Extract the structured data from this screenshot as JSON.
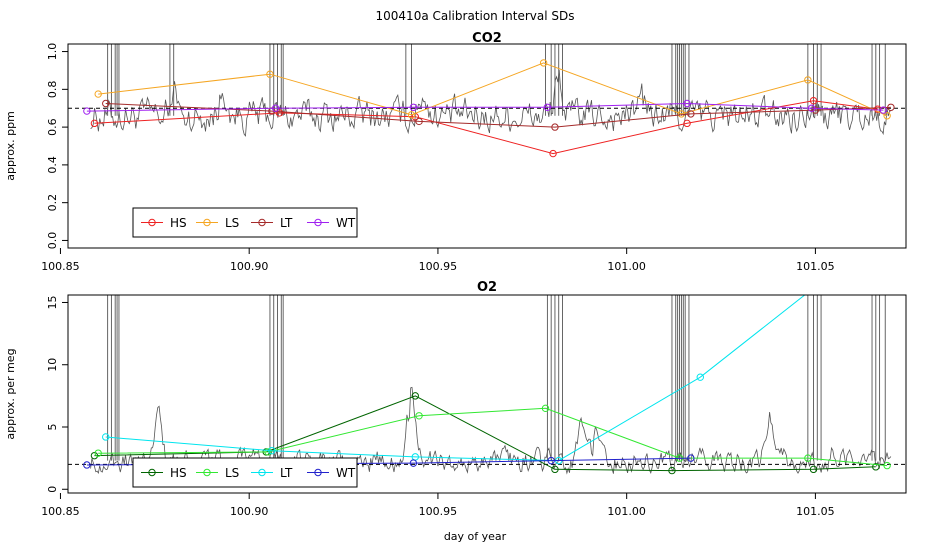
{
  "title": "100410a   Calibration Interval SDs",
  "xlabel": "day of year",
  "chart_data": [
    {
      "type": "line",
      "title": "CO2",
      "ylabel": "approx. ppm",
      "xlim": [
        100.852,
        101.074
      ],
      "ylim": [
        -0.04,
        1.04
      ],
      "xticks": [
        100.85,
        100.9,
        100.95,
        101.0,
        101.05
      ],
      "xtick_labels": [
        "100.85",
        "100.90",
        "100.95",
        "101.00",
        "101.05"
      ],
      "yticks": [
        0.0,
        0.2,
        0.4,
        0.6,
        0.8,
        1.0
      ],
      "ytick_labels": [
        "0.0",
        "0.2",
        "0.4",
        "0.6",
        "0.8",
        "1.0"
      ],
      "reference_line": 0.7,
      "spikes": [
        100.8625,
        100.8635,
        100.8645,
        100.865,
        100.8655,
        100.879,
        100.88,
        100.9055,
        100.9065,
        100.9075,
        100.9085,
        100.909,
        100.9415,
        100.943,
        100.9785,
        100.98,
        100.981,
        100.982,
        100.983,
        101.012,
        101.013,
        101.0135,
        101.014,
        101.0145,
        101.015,
        101.0155,
        101.0165,
        101.048,
        101.0495,
        101.0505,
        101.0515,
        101.065,
        101.066,
        101.067,
        101.0685
      ],
      "background_trace": {
        "baseline": 0.66,
        "amplitude": 0.07,
        "start": 100.858,
        "end": 101.07,
        "peaks": [
          {
            "x": 100.88,
            "y": 0.78
          },
          {
            "x": 100.893,
            "y": 0.8
          },
          {
            "x": 100.946,
            "y": 0.8
          },
          {
            "x": 100.982,
            "y": 0.88
          },
          {
            "x": 101.004,
            "y": 0.74
          },
          {
            "x": 101.049,
            "y": 0.8
          }
        ]
      },
      "legend": [
        "HS",
        "LS",
        "LT",
        "WT"
      ],
      "series": [
        {
          "name": "HS",
          "color": "#ee2222",
          "x": [
            100.859,
            100.908,
            100.944,
            100.9805,
            101.016,
            101.0495,
            101.0665
          ],
          "y": [
            0.62,
            0.675,
            0.655,
            0.46,
            0.62,
            0.74,
            0.695
          ]
        },
        {
          "name": "LS",
          "color": "#f5a623",
          "x": [
            100.86,
            100.9055,
            100.943,
            100.978,
            101.0145,
            101.048,
            101.069
          ],
          "y": [
            0.775,
            0.88,
            0.665,
            0.94,
            0.67,
            0.85,
            0.66
          ]
        },
        {
          "name": "LT",
          "color": "#a52a2a",
          "x": [
            100.862,
            100.906,
            100.945,
            100.981,
            101.017,
            101.05,
            101.07
          ],
          "y": [
            0.725,
            0.685,
            0.63,
            0.6,
            0.67,
            0.69,
            0.705
          ]
        },
        {
          "name": "WT",
          "color": "#a020f0",
          "x": [
            100.857,
            100.907,
            100.9435,
            100.979,
            101.016,
            101.049,
            101.068
          ],
          "y": [
            0.685,
            0.7,
            0.705,
            0.705,
            0.725,
            0.7,
            0.69
          ]
        }
      ]
    },
    {
      "type": "line",
      "title": "O2",
      "ylabel": "approx. per meg",
      "xlim": [
        100.852,
        101.074
      ],
      "ylim": [
        -0.3,
        15.6
      ],
      "xticks": [
        100.85,
        100.9,
        100.95,
        101.0,
        101.05
      ],
      "xtick_labels": [
        "100.85",
        "100.90",
        "100.95",
        "101.00",
        "101.05"
      ],
      "yticks": [
        0,
        5,
        10,
        15
      ],
      "ytick_labels": [
        "0",
        "5",
        "10",
        "15"
      ],
      "reference_line": 2.0,
      "spikes": [
        100.8625,
        100.8635,
        100.8645,
        100.865,
        100.8655,
        100.9055,
        100.9065,
        100.9075,
        100.9085,
        100.909,
        100.979,
        100.98,
        100.981,
        100.982,
        100.983,
        101.012,
        101.013,
        101.0135,
        101.014,
        101.0145,
        101.015,
        101.0155,
        101.0165,
        101.048,
        101.0495,
        101.0505,
        101.0515,
        101.065,
        101.066,
        101.067,
        101.0685
      ],
      "background_trace": {
        "baseline": 2.3,
        "amplitude": 0.7,
        "start": 100.858,
        "end": 101.07,
        "peaks": [
          {
            "x": 100.876,
            "y": 7.2
          },
          {
            "x": 100.898,
            "y": 3.5
          },
          {
            "x": 100.943,
            "y": 9.0
          },
          {
            "x": 100.988,
            "y": 6.0
          },
          {
            "x": 100.992,
            "y": 5.0
          },
          {
            "x": 101.038,
            "y": 7.0
          },
          {
            "x": 101.055,
            "y": 3.2
          }
        ]
      },
      "legend": [
        "HS",
        "LS",
        "LT",
        "WT"
      ],
      "series": [
        {
          "name": "HS",
          "color": "#006400",
          "x": [
            100.859,
            100.9045,
            100.944,
            100.981,
            101.012,
            101.0495,
            101.066
          ],
          "y": [
            2.7,
            3.0,
            7.5,
            1.6,
            1.5,
            1.6,
            1.8
          ]
        },
        {
          "name": "LS",
          "color": "#32e832",
          "x": [
            100.86,
            100.905,
            100.945,
            100.9785,
            101.014,
            101.048,
            101.069
          ],
          "y": [
            2.9,
            3.0,
            5.9,
            6.5,
            2.5,
            2.5,
            1.9
          ]
        },
        {
          "name": "LT",
          "color": "#00e5ee",
          "x": [
            100.862,
            100.906,
            100.944,
            100.982,
            101.0195
          ],
          "y": [
            4.2,
            3.1,
            2.6,
            2.3,
            9.0
          ]
        },
        {
          "name": "WT",
          "color": "#2222cc",
          "x": [
            100.857,
            100.907,
            100.9435,
            100.98,
            101.017
          ],
          "y": [
            1.95,
            2.05,
            2.1,
            2.3,
            2.5
          ]
        }
      ],
      "lt_extension": {
        "x": [
          101.0195,
          101.048
        ],
        "y": [
          9.0,
          15.8
        ]
      }
    }
  ]
}
